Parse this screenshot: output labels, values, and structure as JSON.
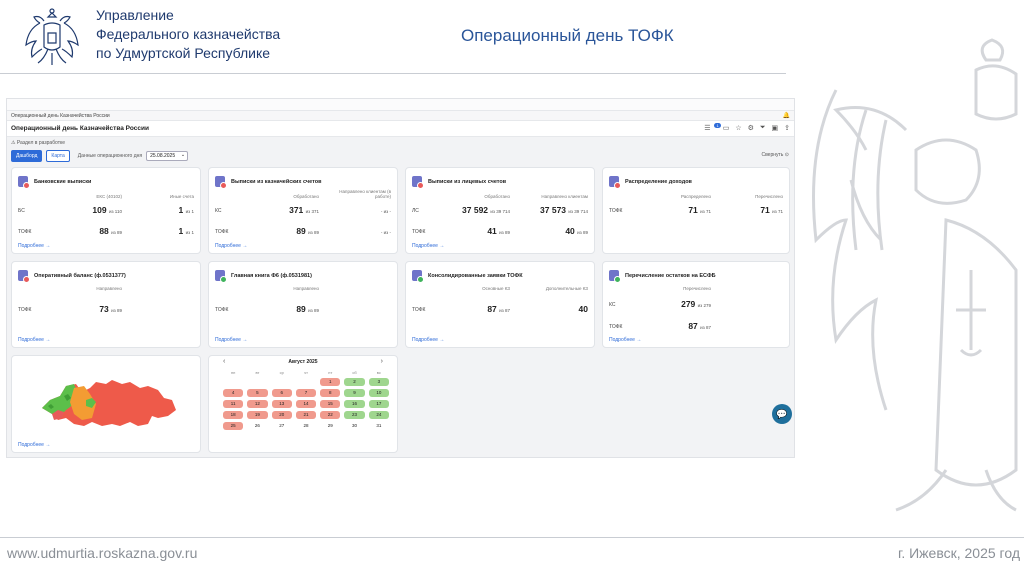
{
  "slide": {
    "org_line1": "Управление",
    "org_line2": "Федерального казначейства",
    "org_line3": "по Удмуртской Республике",
    "title": "Операционный день ТОФК",
    "footer_url": "www.udmurtia.roskazna.gov.ru",
    "footer_city": "г. Ижевск, 2025 год"
  },
  "app": {
    "tab_caption": "Операционный день Казначейства России",
    "page_title": "Операционный день Казначейства России",
    "notification_count": "1",
    "dev_note": "Раздел в разработке",
    "tabs": [
      "Дашборд",
      "Карта"
    ],
    "date_label": "Данные операционного дня",
    "date_value": "25.08.2025",
    "collapse_label": "Свернуть",
    "more_label": "Подробнее →"
  },
  "cards": [
    {
      "title": "Банковские выписки",
      "cols": [
        "ЕКС (40102)",
        "Иные счета"
      ],
      "rows": [
        {
          "label": "БС",
          "v1": "109",
          "of1": "из 110",
          "v2": "1",
          "of2": "из 1"
        },
        {
          "label": "ТОФК",
          "v1": "88",
          "of1": "из 89",
          "v2": "1",
          "of2": "из 1"
        }
      ]
    },
    {
      "title": "Выписки из казначейских счетов",
      "cols": [
        "Обработано",
        "Направлено клиентам (в работе)"
      ],
      "rows": [
        {
          "label": "КС",
          "v1": "371",
          "of1": "из 371",
          "v2": "",
          "of2": "- из -"
        },
        {
          "label": "ТОФК",
          "v1": "89",
          "of1": "из 89",
          "v2": "",
          "of2": "- из -"
        }
      ]
    },
    {
      "title": "Выписки из лицевых счетов",
      "cols": [
        "Обработано",
        "Направлено клиентам"
      ],
      "rows": [
        {
          "label": "ЛС",
          "v1": "37 592",
          "of1": "из 39 714",
          "v2": "37 573",
          "of2": "из 39 714"
        },
        {
          "label": "ТОФК",
          "v1": "41",
          "of1": "из 89",
          "v2": "40",
          "of2": "из 89"
        }
      ]
    },
    {
      "title": "Распределение доходов",
      "cols": [
        "Распределено",
        "Перечислено"
      ],
      "rows": [
        {
          "label": "ТОФК",
          "v1": "71",
          "of1": "из 71",
          "v2": "71",
          "of2": "из 71"
        }
      ]
    },
    {
      "title": "Оперативный баланс (ф.0531377)",
      "cols": [
        "Направлено"
      ],
      "rows": [
        {
          "label": "ТОФК",
          "v1": "73",
          "of1": "из 89"
        }
      ]
    },
    {
      "title": "Главная книга Ф6 (ф.0531981)",
      "cols": [
        "Направлено"
      ],
      "rows": [
        {
          "label": "ТОФК",
          "v1": "89",
          "of1": "из 89"
        }
      ]
    },
    {
      "title": "Консолидированные заявки ТОФК",
      "cols": [
        "Основные КЗ",
        "Дополнительные КЗ"
      ],
      "rows": [
        {
          "label": "ТОФК",
          "v1": "87",
          "of1": "из 87",
          "v2": "40",
          "of2": ""
        }
      ]
    },
    {
      "title": "Перечисление остатков на ЕСФБ",
      "cols": [
        "Перечислено"
      ],
      "rows": [
        {
          "label": "КС",
          "v1": "279",
          "of1": "из 279"
        },
        {
          "label": "ТОФК",
          "v1": "87",
          "of1": "из 87"
        }
      ]
    }
  ],
  "calendar": {
    "month": "Август 2025",
    "dow": [
      "пн",
      "вт",
      "ср",
      "чт",
      "пт",
      "сб",
      "вс"
    ],
    "days": [
      {
        "d": "",
        "s": ""
      },
      {
        "d": "",
        "s": ""
      },
      {
        "d": "",
        "s": ""
      },
      {
        "d": "",
        "s": ""
      },
      {
        "d": "1",
        "s": "r"
      },
      {
        "d": "2",
        "s": "g"
      },
      {
        "d": "3",
        "s": "g"
      },
      {
        "d": "4",
        "s": "r"
      },
      {
        "d": "5",
        "s": "r"
      },
      {
        "d": "6",
        "s": "r"
      },
      {
        "d": "7",
        "s": "r"
      },
      {
        "d": "8",
        "s": "r"
      },
      {
        "d": "9",
        "s": "g"
      },
      {
        "d": "10",
        "s": "g"
      },
      {
        "d": "11",
        "s": "r"
      },
      {
        "d": "12",
        "s": "r"
      },
      {
        "d": "13",
        "s": "r"
      },
      {
        "d": "14",
        "s": "r"
      },
      {
        "d": "15",
        "s": "r"
      },
      {
        "d": "16",
        "s": "g"
      },
      {
        "d": "17",
        "s": "g"
      },
      {
        "d": "18",
        "s": "r"
      },
      {
        "d": "19",
        "s": "r"
      },
      {
        "d": "20",
        "s": "r"
      },
      {
        "d": "21",
        "s": "r"
      },
      {
        "d": "22",
        "s": "r"
      },
      {
        "d": "23",
        "s": "g"
      },
      {
        "d": "24",
        "s": "g"
      },
      {
        "d": "25",
        "s": "r"
      },
      {
        "d": "26",
        "s": ""
      },
      {
        "d": "27",
        "s": ""
      },
      {
        "d": "28",
        "s": ""
      },
      {
        "d": "29",
        "s": ""
      },
      {
        "d": "30",
        "s": ""
      },
      {
        "d": "31",
        "s": ""
      }
    ]
  },
  "colors": {
    "accent": "#2e6bd8",
    "status_red": "#f09a8d",
    "status_green": "#9fd68e",
    "map_red": "#ee5a4a",
    "map_orange": "#f39c33",
    "map_green": "#5cbf4a"
  }
}
